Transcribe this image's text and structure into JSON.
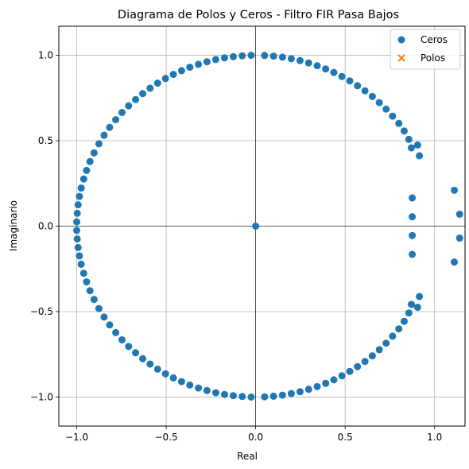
{
  "chart_data": {
    "type": "scatter",
    "title": "Diagrama de Polos y Ceros - Filtro FIR Pasa Bajos",
    "xlabel": "Real",
    "ylabel": "Imaginario",
    "xlim": [
      -1.1,
      1.17
    ],
    "ylim": [
      -1.17,
      1.17
    ],
    "grid": true,
    "legend_position": "top-right",
    "xticks": [
      -1.0,
      -0.5,
      0.0,
      0.5,
      1.0
    ],
    "xtick_labels": [
      "−1.0",
      "−0.5",
      "0.0",
      "0.5",
      "1.0"
    ],
    "yticks": [
      -1.0,
      -0.5,
      0.0,
      0.5,
      1.0
    ],
    "ytick_labels": [
      "−1.0",
      "−0.5",
      "0.0",
      "0.5",
      "1.0"
    ],
    "series": [
      {
        "name": "Ceros",
        "marker": "circle",
        "color": "#1f77b4",
        "points": [
          [
            0.0,
            0.0
          ],
          [
            0.05,
            0.999
          ],
          [
            0.1,
            0.995
          ],
          [
            0.15,
            0.989
          ],
          [
            0.199,
            0.98
          ],
          [
            0.248,
            0.969
          ],
          [
            0.296,
            0.955
          ],
          [
            0.344,
            0.939
          ],
          [
            0.391,
            0.92
          ],
          [
            0.437,
            0.899
          ],
          [
            0.482,
            0.876
          ],
          [
            0.526,
            0.85
          ],
          [
            0.569,
            0.822
          ],
          [
            0.611,
            0.792
          ],
          [
            0.652,
            0.759
          ],
          [
            0.691,
            0.723
          ],
          [
            0.729,
            0.685
          ],
          [
            0.765,
            0.644
          ],
          [
            0.8,
            0.601
          ],
          [
            0.83,
            0.557
          ],
          [
            0.856,
            0.508
          ],
          [
            0.87,
            0.458
          ],
          [
            0.905,
            0.475
          ],
          [
            0.915,
            0.412
          ],
          [
            0.875,
            0.165
          ],
          [
            0.875,
            0.055
          ],
          [
            0.875,
            -0.055
          ],
          [
            0.875,
            -0.165
          ],
          [
            1.11,
            0.21
          ],
          [
            1.14,
            0.07
          ],
          [
            1.14,
            -0.07
          ],
          [
            1.11,
            -0.21
          ],
          [
            0.915,
            -0.412
          ],
          [
            0.905,
            -0.475
          ],
          [
            0.87,
            -0.458
          ],
          [
            0.856,
            -0.508
          ],
          [
            0.83,
            -0.557
          ],
          [
            0.8,
            -0.601
          ],
          [
            0.765,
            -0.644
          ],
          [
            0.729,
            -0.685
          ],
          [
            0.691,
            -0.723
          ],
          [
            0.652,
            -0.759
          ],
          [
            0.611,
            -0.792
          ],
          [
            0.569,
            -0.822
          ],
          [
            0.526,
            -0.85
          ],
          [
            0.482,
            -0.876
          ],
          [
            0.437,
            -0.899
          ],
          [
            0.391,
            -0.92
          ],
          [
            0.344,
            -0.939
          ],
          [
            0.296,
            -0.955
          ],
          [
            0.248,
            -0.969
          ],
          [
            0.199,
            -0.98
          ],
          [
            0.15,
            -0.989
          ],
          [
            0.1,
            -0.995
          ],
          [
            0.05,
            -0.999
          ],
          [
            -0.025,
            1.0
          ],
          [
            -0.075,
            0.997
          ],
          [
            -0.125,
            0.992
          ],
          [
            -0.174,
            0.985
          ],
          [
            -0.223,
            0.975
          ],
          [
            -0.272,
            0.962
          ],
          [
            -0.32,
            0.947
          ],
          [
            -0.368,
            0.93
          ],
          [
            -0.414,
            0.91
          ],
          [
            -0.46,
            0.888
          ],
          [
            -0.504,
            0.864
          ],
          [
            -0.548,
            0.837
          ],
          [
            -0.59,
            0.807
          ],
          [
            -0.631,
            0.776
          ],
          [
            -0.671,
            0.741
          ],
          [
            -0.71,
            0.704
          ],
          [
            -0.747,
            0.665
          ],
          [
            -0.782,
            0.623
          ],
          [
            -0.816,
            0.578
          ],
          [
            -0.847,
            0.532
          ],
          [
            -0.876,
            0.482
          ],
          [
            -0.903,
            0.429
          ],
          [
            -0.926,
            0.378
          ],
          [
            -0.945,
            0.326
          ],
          [
            -0.961,
            0.276
          ],
          [
            -0.975,
            0.223
          ],
          [
            -0.985,
            0.174
          ],
          [
            -0.992,
            0.125
          ],
          [
            -0.997,
            0.075
          ],
          [
            -1.0,
            0.025
          ],
          [
            -1.0,
            -0.025
          ],
          [
            -0.997,
            -0.075
          ],
          [
            -0.992,
            -0.125
          ],
          [
            -0.985,
            -0.174
          ],
          [
            -0.975,
            -0.223
          ],
          [
            -0.961,
            -0.276
          ],
          [
            -0.945,
            -0.326
          ],
          [
            -0.926,
            -0.378
          ],
          [
            -0.903,
            -0.429
          ],
          [
            -0.876,
            -0.482
          ],
          [
            -0.847,
            -0.532
          ],
          [
            -0.816,
            -0.578
          ],
          [
            -0.782,
            -0.623
          ],
          [
            -0.747,
            -0.665
          ],
          [
            -0.71,
            -0.704
          ],
          [
            -0.671,
            -0.741
          ],
          [
            -0.631,
            -0.776
          ],
          [
            -0.59,
            -0.807
          ],
          [
            -0.548,
            -0.837
          ],
          [
            -0.504,
            -0.864
          ],
          [
            -0.46,
            -0.888
          ],
          [
            -0.414,
            -0.91
          ],
          [
            -0.368,
            -0.93
          ],
          [
            -0.32,
            -0.947
          ],
          [
            -0.272,
            -0.962
          ],
          [
            -0.223,
            -0.975
          ],
          [
            -0.174,
            -0.985
          ],
          [
            -0.125,
            -0.992
          ],
          [
            -0.075,
            -0.997
          ],
          [
            -0.025,
            -1.0
          ]
        ]
      },
      {
        "name": "Polos",
        "marker": "x",
        "color": "#ff7f0e",
        "points": []
      }
    ]
  }
}
